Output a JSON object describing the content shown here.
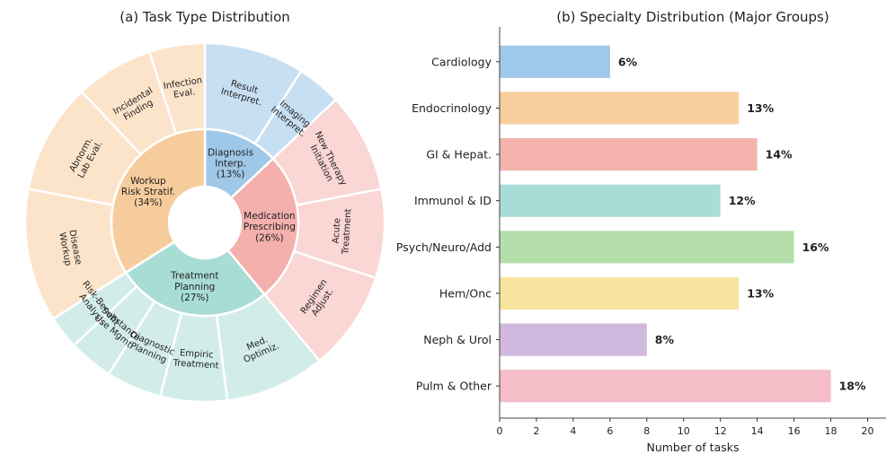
{
  "chart_data": [
    {
      "type": "sunburst",
      "title": "(a) Task Type Distribution",
      "inner": [
        {
          "label": "Diagnosis\nInterp.\n(13%)",
          "value": 13,
          "color": "#9fc8e8"
        },
        {
          "label": "Medication\nPrescribing\n(26%)",
          "value": 26,
          "color": "#f4b0ac"
        },
        {
          "label": "Treatment\nPlanning\n(27%)",
          "value": 27,
          "color": "#a8ddd6"
        },
        {
          "label": "Workup\nRisk Stratif.\n(34%)",
          "value": 34,
          "color": "#f7cc9c"
        }
      ],
      "outer": [
        {
          "label": "Result\nInterpret.",
          "value": 9,
          "group": 0,
          "color": "#c7dff3"
        },
        {
          "label": "Imaging\nInterpret.",
          "value": 4,
          "group": 0,
          "color": "#c7dff3"
        },
        {
          "label": "New Therapy\nInitiation",
          "value": 9,
          "group": 1,
          "color": "#fad6d4"
        },
        {
          "label": "Acute\nTreatment",
          "value": 8,
          "group": 1,
          "color": "#fad6d4"
        },
        {
          "label": "Regimen\nAdjust.",
          "value": 9,
          "group": 1,
          "color": "#fad6d4"
        },
        {
          "label": "Med.\nOptimiz.",
          "value": 9,
          "group": 2,
          "color": "#d2ede9"
        },
        {
          "label": "Empiric\nTreatment",
          "value": 6,
          "group": 2,
          "color": "#d2ede9"
        },
        {
          "label": "Diagnostic\nPlanning",
          "value": 5,
          "group": 2,
          "color": "#d2ede9"
        },
        {
          "label": "Substance\nUse Mgmt.",
          "value": 4,
          "group": 2,
          "color": "#d2ede9"
        },
        {
          "label": "Risk-Benefit\nAnalysis",
          "value": 3,
          "group": 2,
          "color": "#d2ede9"
        },
        {
          "label": "Disease\nWorkup",
          "value": 12,
          "group": 3,
          "color": "#fce4cb"
        },
        {
          "label": "Abnorm.\nLab Eval.",
          "value": 10,
          "group": 3,
          "color": "#fce4cb"
        },
        {
          "label": "Incidental\nFinding",
          "value": 7,
          "group": 3,
          "color": "#fce4cb"
        },
        {
          "label": "Infection\nEval.",
          "value": 5,
          "group": 3,
          "color": "#fce4cb"
        }
      ]
    },
    {
      "type": "bar",
      "orientation": "horizontal",
      "title": "(b) Specialty Distribution (Major Groups)",
      "xlabel": "Number of tasks",
      "xlim": [
        0,
        21
      ],
      "xticks": [
        0,
        2,
        4,
        6,
        8,
        10,
        12,
        14,
        16,
        18,
        20
      ],
      "categories": [
        "Cardiology",
        "Endocrinology",
        "GI & Hepat.",
        "Immunol & ID",
        "Psych/Neuro/Add",
        "Hem/Onc",
        "Neph & Urol",
        "Pulm & Other"
      ],
      "values": [
        6,
        13,
        14,
        12,
        16,
        13,
        8,
        18
      ],
      "labels": [
        "6%",
        "13%",
        "14%",
        "12%",
        "16%",
        "13%",
        "8%",
        "18%"
      ],
      "colors": [
        "#a0c8e8",
        "#f8cf9f",
        "#f5b3ae",
        "#a8ddd7",
        "#b5dfaa",
        "#f7e49e",
        "#d0b8de",
        "#f5bdc8"
      ]
    }
  ]
}
